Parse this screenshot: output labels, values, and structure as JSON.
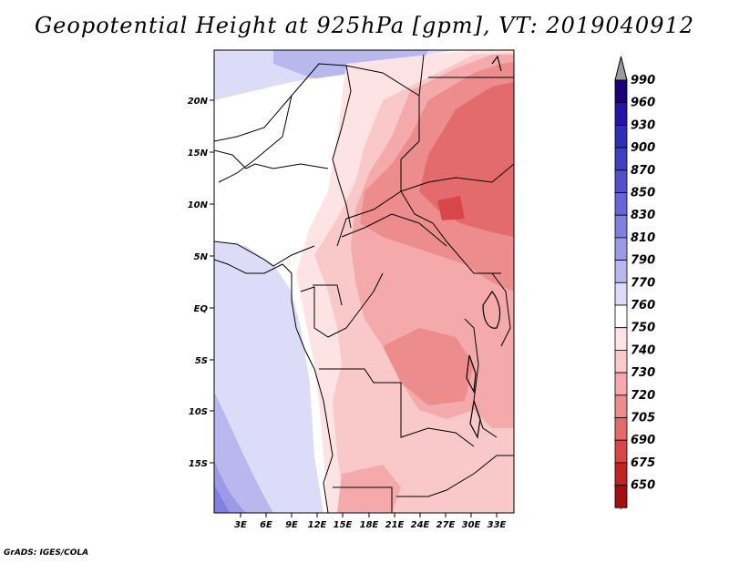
{
  "title": "Geopotential Height at 925hPa [gpm], VT: 2019040912",
  "credit": "GrADS: IGES/COLA",
  "map": {
    "lat_ticks": [
      "20N",
      "15N",
      "10N",
      "5N",
      "EQ",
      "5S",
      "10S",
      "15S"
    ],
    "lon_ticks": [
      "3E",
      "6E",
      "9E",
      "12E",
      "15E",
      "18E",
      "21E",
      "24E",
      "27E",
      "30E",
      "33E"
    ]
  },
  "colorbar": {
    "labels": [
      "990",
      "960",
      "930",
      "900",
      "870",
      "850",
      "830",
      "810",
      "790",
      "770",
      "760",
      "750",
      "740",
      "730",
      "720",
      "705",
      "690",
      "675",
      "650"
    ],
    "colors": [
      "#1a007f",
      "#2316a6",
      "#2f2fb8",
      "#3f3fc6",
      "#5151cf",
      "#6666d8",
      "#8080e0",
      "#9a9ae6",
      "#b8b8ef",
      "#dcdcf9",
      "#ffffff",
      "#fde3e3",
      "#f9c9c9",
      "#f4aaaa",
      "#ec8c8c",
      "#e46b6b",
      "#d84747",
      "#c42222",
      "#a50d0d"
    ],
    "top_arrow_color": "#9b9b9b",
    "bottom_arrow_color": "#a50d0d"
  }
}
